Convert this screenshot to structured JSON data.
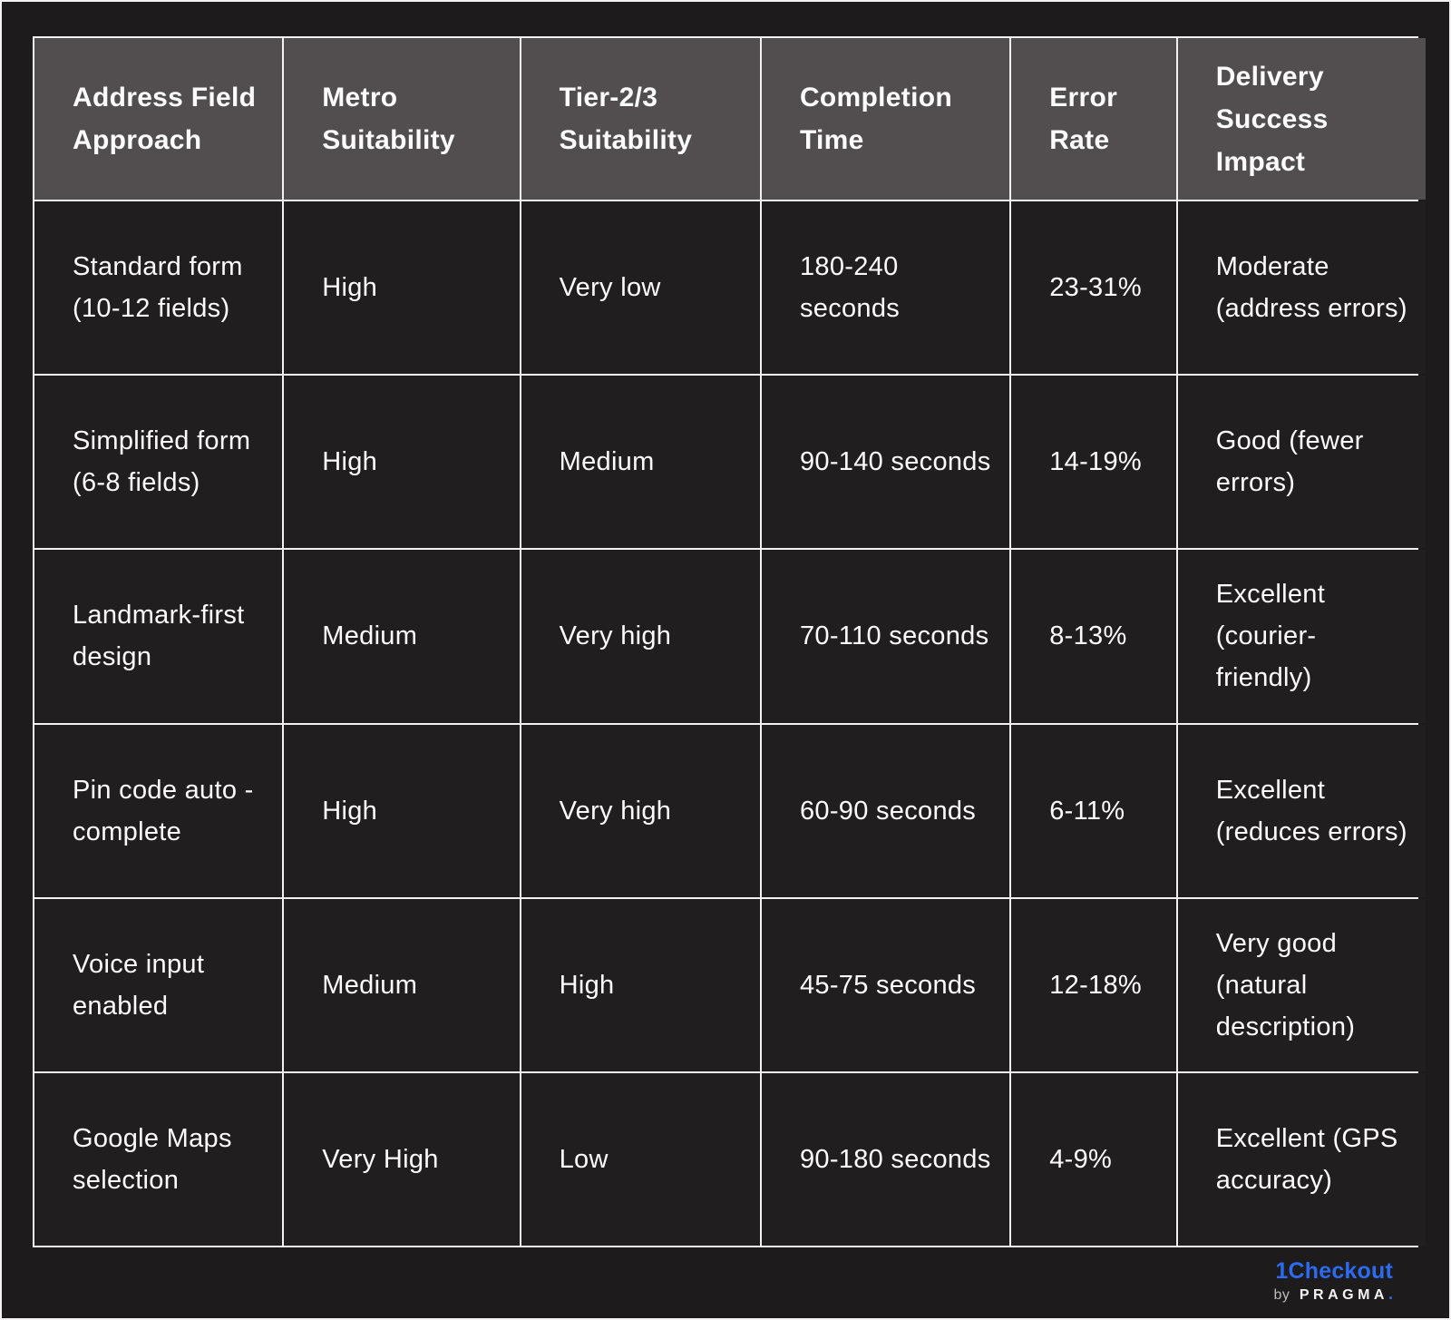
{
  "chart_data": {
    "type": "table",
    "columns": [
      "Address Field Approach",
      "Metro Suitability",
      "Tier-2/3 Suitability",
      "Completion Time",
      "Error Rate",
      "Delivery Success Impact"
    ],
    "rows": [
      [
        "Standard form (10-12 fields)",
        "High",
        "Very low",
        "180-240 seconds",
        "23-31%",
        "Moderate (address errors)"
      ],
      [
        "Simplified form (6-8 fields)",
        "High",
        "Medium",
        "90-140 seconds",
        "14-19%",
        "Good (fewer errors)"
      ],
      [
        "Landmark-first design",
        "Medium",
        "Very high",
        "70-110 seconds",
        "8-13%",
        "Excellent (courier-friendly)"
      ],
      [
        "Pin code auto -complete",
        "High",
        "Very high",
        "60-90 seconds",
        "6-11%",
        "Excellent (reduces errors)"
      ],
      [
        "Voice input enabled",
        "Medium",
        "High",
        "45-75 seconds",
        "12-18%",
        "Very good (natural description)"
      ],
      [
        "Google Maps selection",
        "Very High",
        "Low",
        "90-180 seconds",
        "4-9%",
        "Excellent (GPS accuracy)"
      ]
    ],
    "title": "",
    "layout_hints": {
      "header_background": "#524d4e",
      "cell_background": "#211e1f",
      "gridline_color": "#f2f1f1",
      "page_background": "#1d1b1b",
      "text_color": "#fdfcfc"
    }
  },
  "branding": {
    "product": "1Checkout",
    "by": "by",
    "company": "PRAGMA",
    "dot": ".",
    "accent_color": "#2c6bef"
  }
}
